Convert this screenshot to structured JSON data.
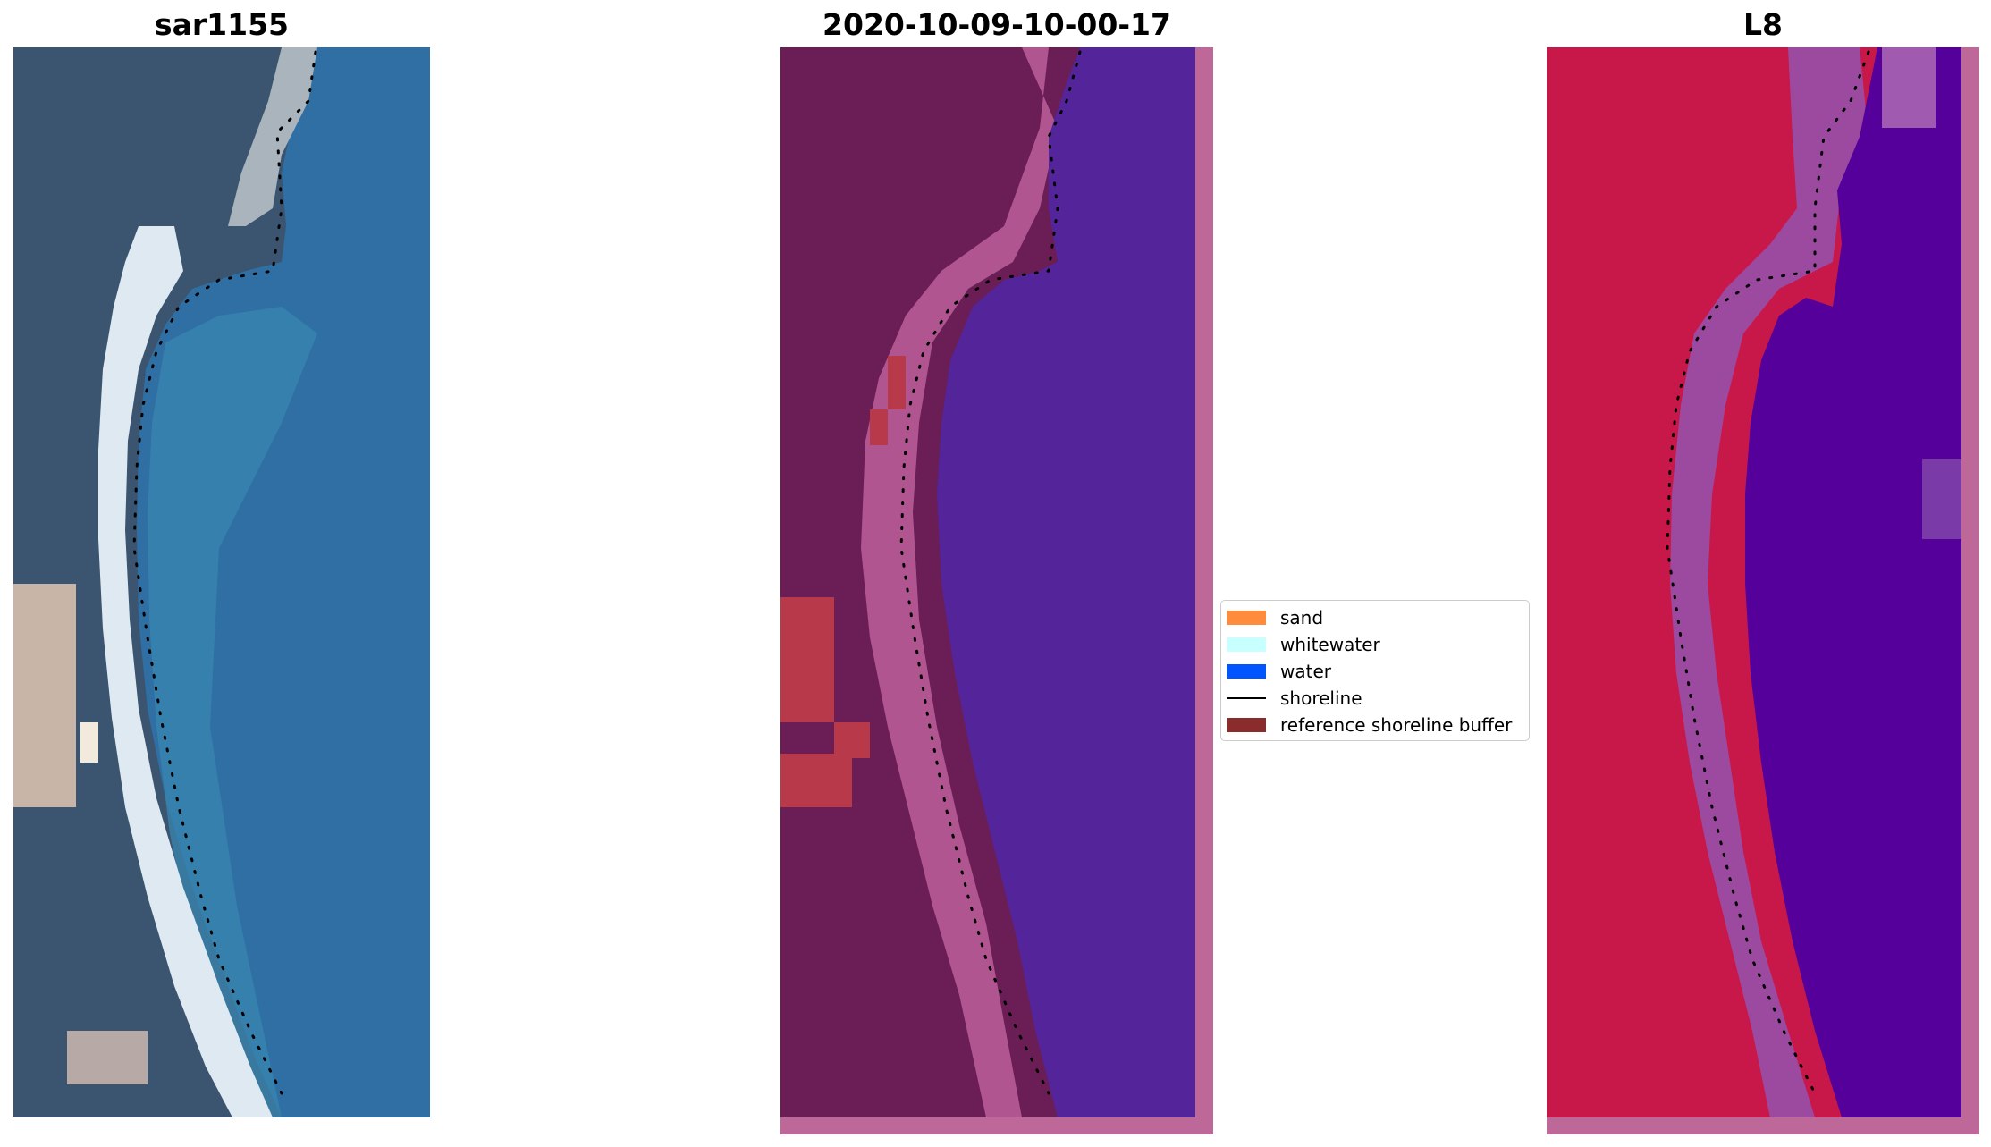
{
  "panels": [
    {
      "title": "sar1155"
    },
    {
      "title": "2020-10-09-10-00-17"
    },
    {
      "title": "L8"
    }
  ],
  "legend": {
    "items": [
      {
        "label": "sand",
        "type": "patch",
        "color": "#ff8c3c"
      },
      {
        "label": "whitewater",
        "type": "patch",
        "color": "#c8ffff"
      },
      {
        "label": "water",
        "type": "patch",
        "color": "#0055ff"
      },
      {
        "label": "shoreline",
        "type": "line",
        "color": "#000000"
      },
      {
        "label": "reference shoreline buffer",
        "type": "patch",
        "color": "#8b2c2c"
      }
    ]
  },
  "colors": {
    "rgb_land": "#3b5570",
    "rgb_sand": "#c9b4a8",
    "rgb_beach": "#dfe9f2",
    "rgb_water": "#2f6fa3",
    "class_land": "#6a1e55",
    "class_beach": "#b05590",
    "class_buffer": "#b83a4a",
    "class_water": "#54249a",
    "class_border": "#bd6898",
    "ndwi_land": "#c8184a",
    "ndwi_transition": "#9c4aa0",
    "ndwi_water": "#55009a",
    "ndwi_border": "#bd6898"
  }
}
